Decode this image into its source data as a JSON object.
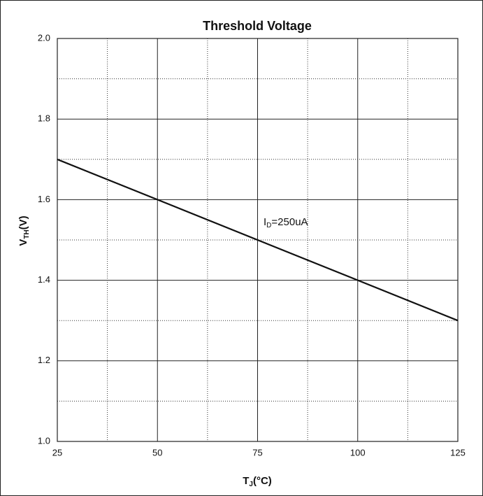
{
  "chart_data": {
    "type": "line",
    "title": "Threshold Voltage",
    "x_label": {
      "main": "T",
      "sub": "J",
      "rest": "(°C)"
    },
    "y_label": {
      "main": "V",
      "sub": "TH",
      "rest": "(V)"
    },
    "annotation": {
      "main": "I",
      "sub": "D",
      "rest": "=250uA"
    },
    "x": [
      25,
      125
    ],
    "series": [
      {
        "color": "#111111",
        "values": [
          1.7,
          1.3
        ]
      }
    ],
    "xlim": [
      25,
      125
    ],
    "xticks": [
      25,
      50,
      75,
      100,
      125
    ],
    "ylim": [
      1.0,
      2.0
    ],
    "yticks": [
      {
        "value": 1.0,
        "label": "1.0"
      },
      1.2,
      1.4,
      1.6,
      1.8,
      {
        "value": 2.0,
        "label": "2.0"
      }
    ],
    "grid": true
  }
}
